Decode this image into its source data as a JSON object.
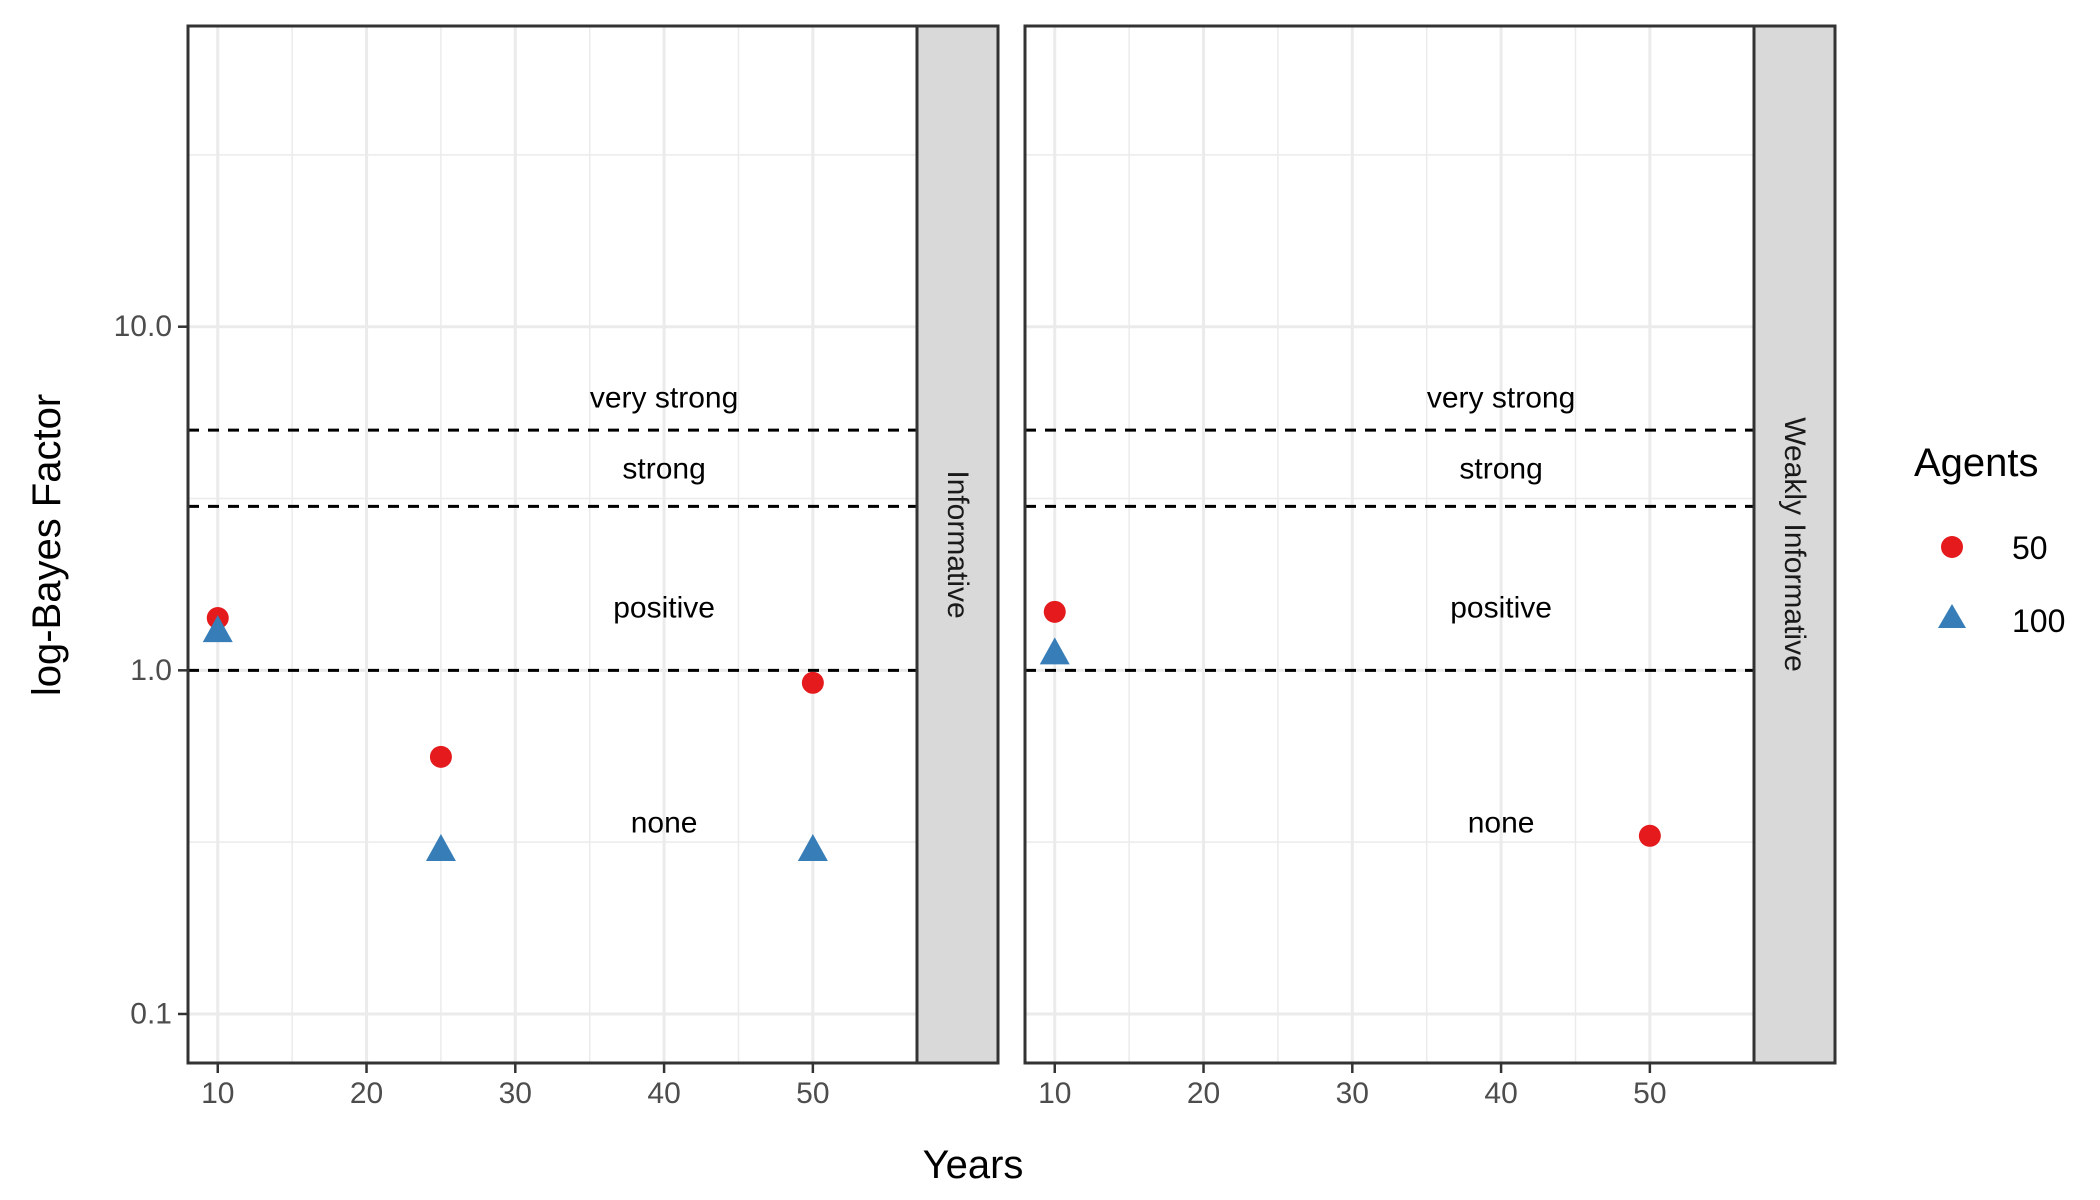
{
  "chart_data": {
    "type": "scatter",
    "xlabel": "Years",
    "ylabel": "log-Bayes Factor",
    "y_scale": "log10",
    "xlim": [
      8,
      57
    ],
    "ylim": [
      0.072,
      75
    ],
    "x_ticks": [
      10,
      20,
      30,
      40,
      50
    ],
    "y_ticks": [
      0.1,
      1.0,
      10.0
    ],
    "x_tick_labels": [
      "10",
      "20",
      "30",
      "40",
      "50"
    ],
    "y_tick_labels": [
      "0.1",
      "1.0",
      "10.0"
    ],
    "grid": true,
    "legend": {
      "title": "Agents",
      "position": "right",
      "entries": [
        {
          "label": "50",
          "shape": "circle",
          "color": "#E41A1C"
        },
        {
          "label": "100",
          "shape": "triangle",
          "color": "#377EB8"
        }
      ]
    },
    "thresholds": [
      {
        "y": 1.0,
        "style": "dashed"
      },
      {
        "y": 3.0,
        "style": "dashed"
      },
      {
        "y": 5.0,
        "style": "dashed"
      }
    ],
    "annotations": [
      {
        "text": "very strong",
        "x": 40,
        "y": 6.2
      },
      {
        "text": "strong",
        "x": 40,
        "y": 3.85
      },
      {
        "text": "positive",
        "x": 40,
        "y": 1.52
      },
      {
        "text": "none",
        "x": 40,
        "y": 0.36
      }
    ],
    "panels": [
      {
        "strip": "Informative",
        "series": [
          {
            "name": "50",
            "x": [
              10,
              25,
              50
            ],
            "y": [
              1.42,
              0.56,
              0.92
            ]
          },
          {
            "name": "100",
            "x": [
              10,
              25,
              50
            ],
            "y": [
              1.3,
              0.3,
              0.3
            ]
          }
        ]
      },
      {
        "strip": "Weakly Informative",
        "series": [
          {
            "name": "50",
            "x": [
              10,
              50
            ],
            "y": [
              1.48,
              0.33
            ]
          },
          {
            "name": "100",
            "x": [
              10
            ],
            "y": [
              1.12
            ]
          }
        ]
      }
    ]
  }
}
